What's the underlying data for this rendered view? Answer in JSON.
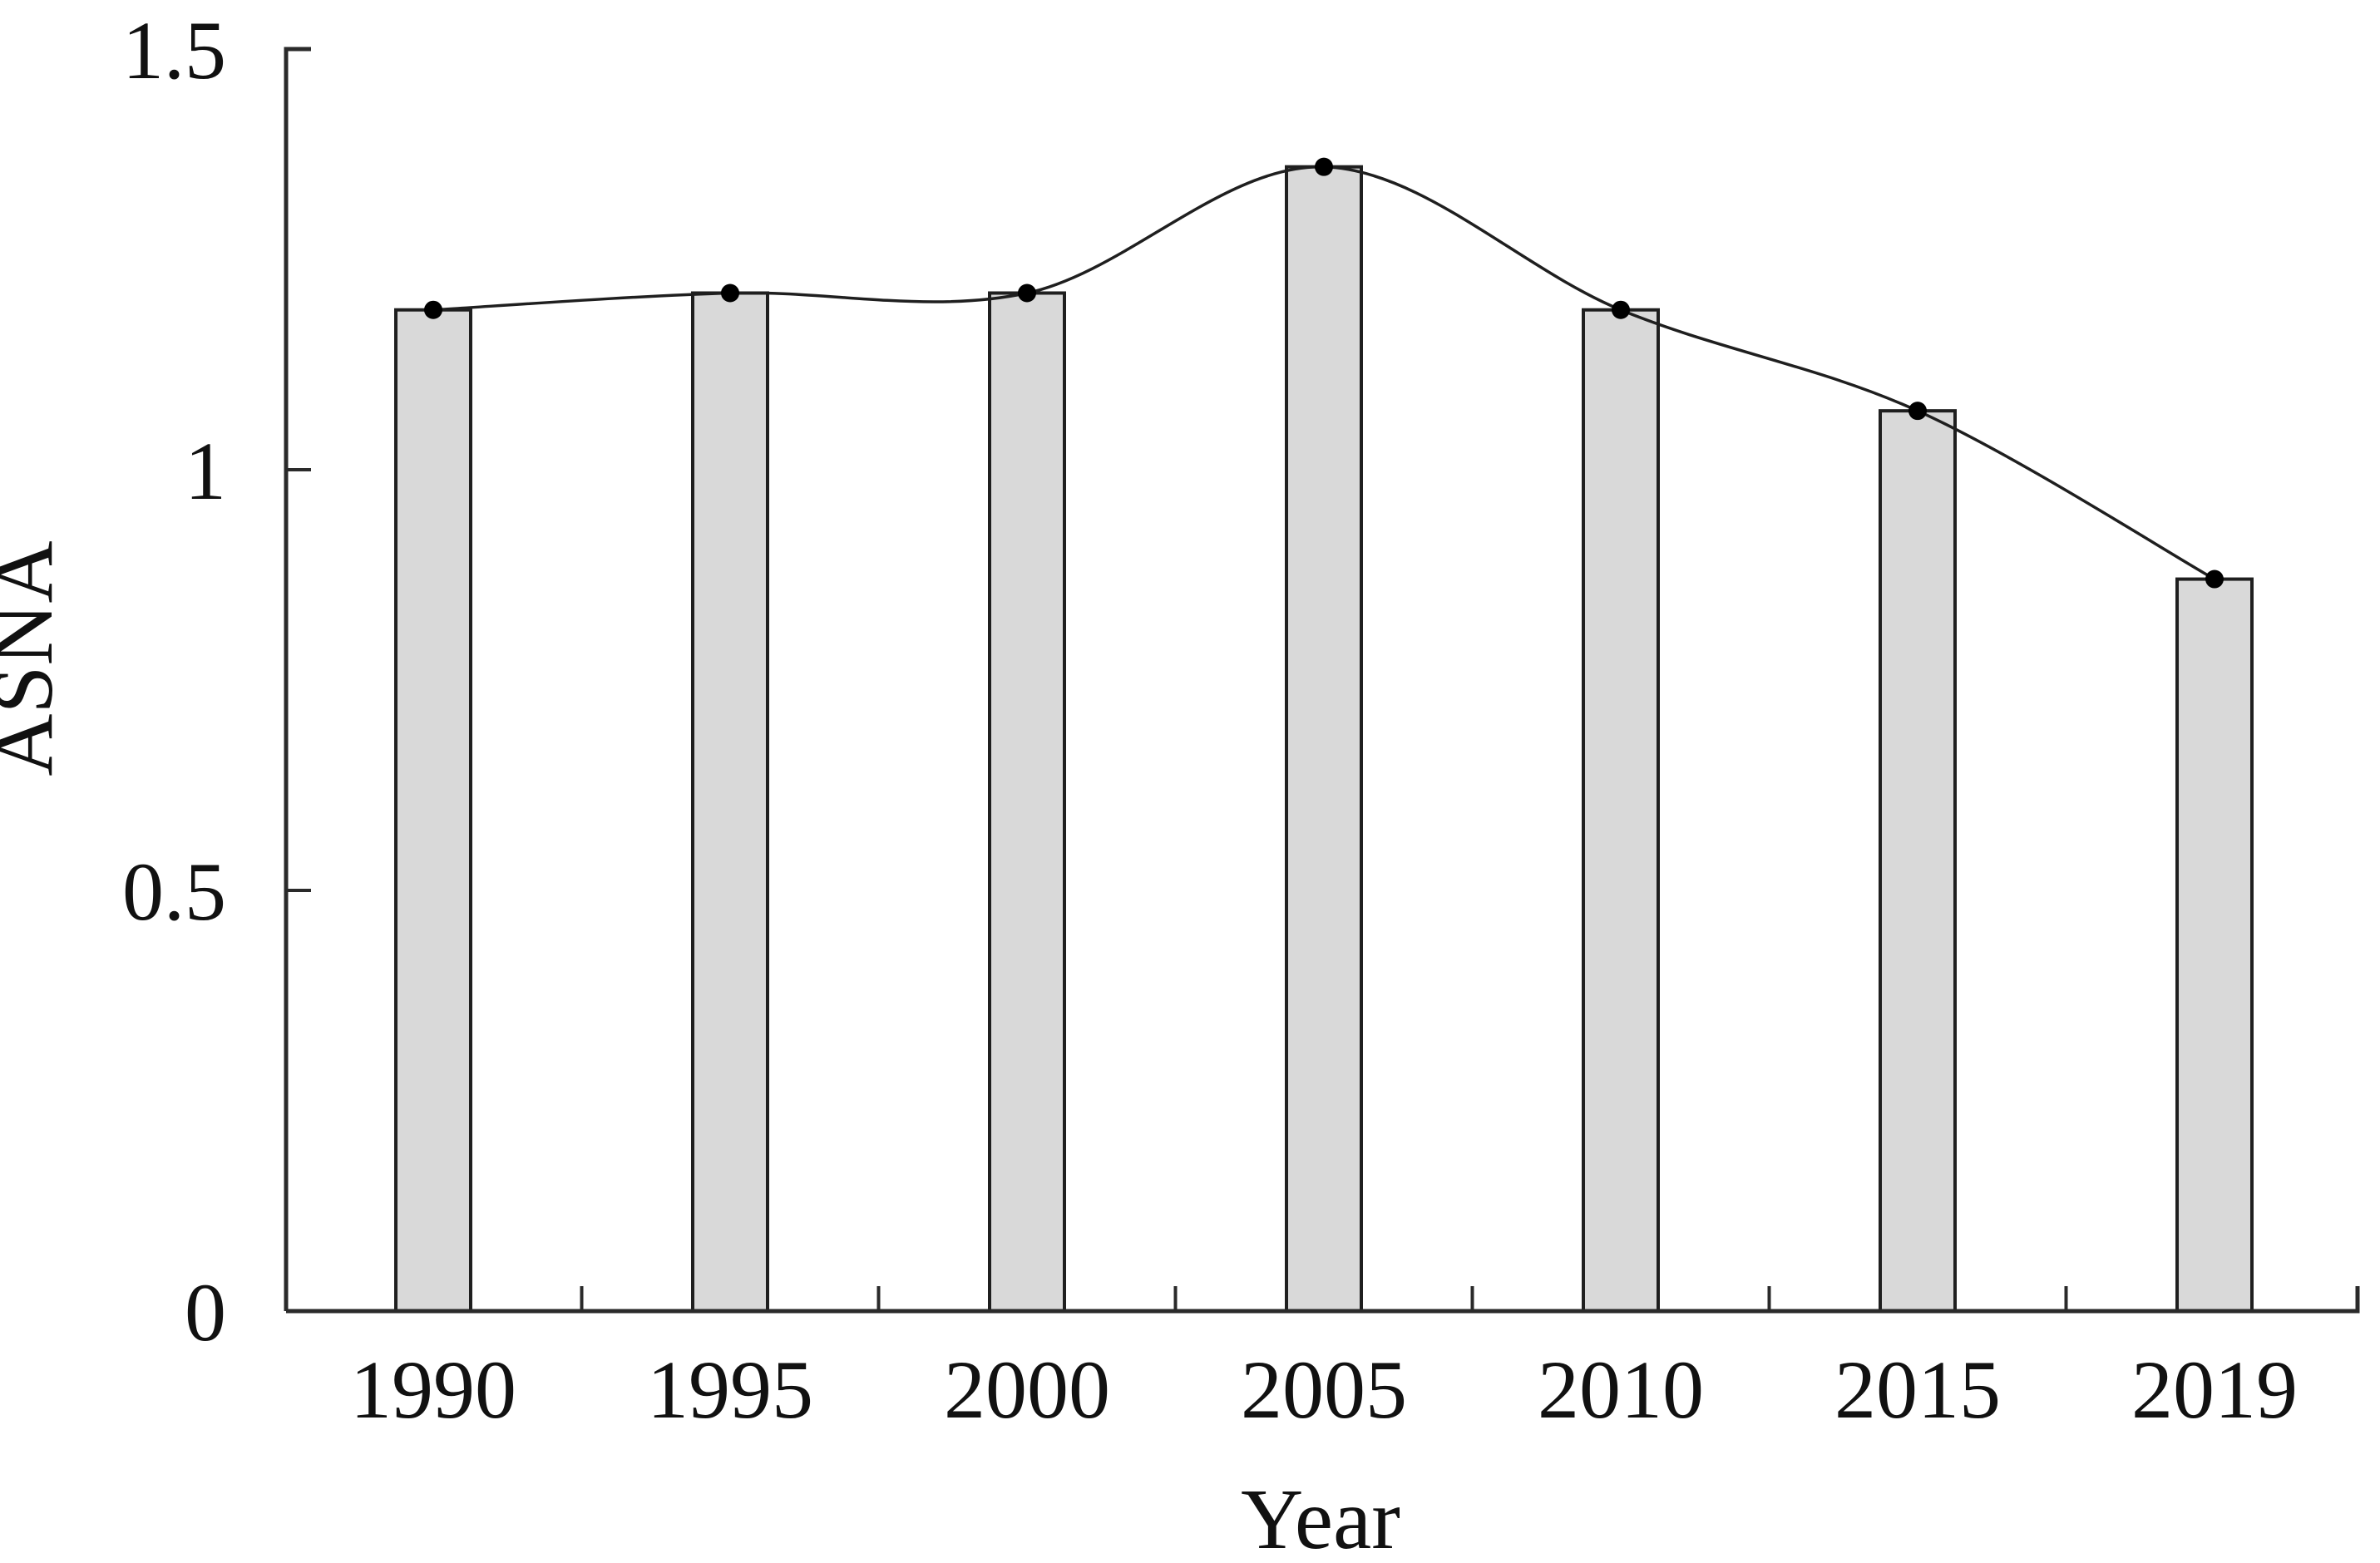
{
  "chart_data": {
    "type": "bar",
    "overlay_line": true,
    "title": "",
    "xlabel": "Year",
    "ylabel": "ASNA",
    "categories": [
      "1990",
      "1995",
      "2000",
      "2005",
      "2010",
      "2015",
      "2019"
    ],
    "values": [
      1.19,
      1.21,
      1.21,
      1.36,
      1.19,
      1.07,
      0.87
    ],
    "ylim": [
      0,
      1.5
    ],
    "yticks": [
      {
        "value": 0,
        "label": "0"
      },
      {
        "value": 0.5,
        "label": "0.5"
      },
      {
        "value": 1,
        "label": "1"
      },
      {
        "value": 1.5,
        "label": "1.5"
      }
    ],
    "grid": false,
    "legend": "none",
    "marker": "filled-circle",
    "colors": {
      "background": "#ffffff",
      "bar_fill": "#d9d9d9",
      "bar_stroke": "#1f1f1f",
      "line": "#1f1f1f",
      "marker": "#000000",
      "axis": "#2a2a2a",
      "text": "#111111"
    }
  }
}
